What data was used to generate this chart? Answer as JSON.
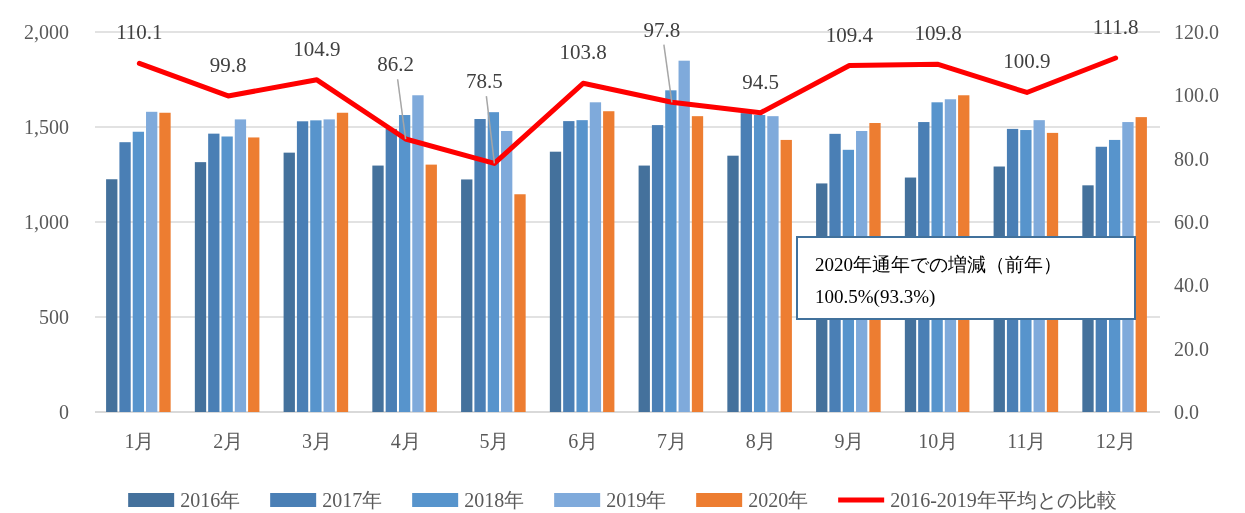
{
  "chart_data": {
    "type": "bar",
    "categories": [
      "1月",
      "2月",
      "3月",
      "4月",
      "5月",
      "6月",
      "7月",
      "8月",
      "9月",
      "10月",
      "11月",
      "12月"
    ],
    "series": [
      {
        "name": "2016年",
        "color": "#44719c",
        "values": [
          1225,
          1315,
          1365,
          1297,
          1224,
          1370,
          1297,
          1349,
          1203,
          1234,
          1292,
          1193
        ]
      },
      {
        "name": "2017年",
        "color": "#4a7fb5",
        "values": [
          1420,
          1465,
          1530,
          1490,
          1542,
          1531,
          1510,
          1573,
          1464,
          1526,
          1490,
          1396
        ]
      },
      {
        "name": "2018年",
        "color": "#5794cc",
        "values": [
          1475,
          1450,
          1535,
          1563,
          1578,
          1536,
          1693,
          1563,
          1380,
          1630,
          1484,
          1432
        ]
      },
      {
        "name": "2019年",
        "color": "#7faadb",
        "values": [
          1580,
          1540,
          1540,
          1667,
          1479,
          1630,
          1849,
          1557,
          1479,
          1646,
          1536,
          1526
        ]
      },
      {
        "name": "2020年",
        "color": "#ed7d31",
        "values": [
          1575,
          1445,
          1575,
          1302,
          1146,
          1583,
          1557,
          1432,
          1521,
          1667,
          1469,
          1552
        ]
      },
      {
        "name": "2016-2019年平均との比較",
        "color": "#ff0000",
        "type": "line",
        "axis": "y2",
        "values": [
          110.1,
          99.8,
          104.9,
          86.2,
          78.5,
          103.8,
          97.8,
          94.5,
          109.4,
          109.8,
          100.9,
          111.8
        ],
        "value_labels": [
          "110.1",
          "99.8",
          "104.9",
          "86.2",
          "78.5",
          "103.8",
          "97.8",
          "94.5",
          "109.4",
          "109.8",
          "100.9",
          "111.8"
        ]
      }
    ],
    "ylim": [
      0,
      2000
    ],
    "yticks": [
      {
        "value": 0,
        "label": "0"
      },
      {
        "value": 500,
        "label": "500"
      },
      {
        "value": 1000,
        "label": "1,000"
      },
      {
        "value": 1500,
        "label": "1,500"
      },
      {
        "value": 2000,
        "label": "2,000"
      }
    ],
    "y2lim": [
      0,
      120
    ],
    "y2ticks": [
      {
        "value": 0,
        "label": "0.0"
      },
      {
        "value": 20,
        "label": "20.0"
      },
      {
        "value": 40,
        "label": "40.0"
      },
      {
        "value": 60,
        "label": "60.0"
      },
      {
        "value": 80,
        "label": "80.0"
      },
      {
        "value": 100,
        "label": "100.0"
      },
      {
        "value": 120,
        "label": "120.0"
      }
    ],
    "grid": "y",
    "legend": "bottom",
    "annotations": [
      "2020年通年での増減（前年）\n100.5%(93.3%)"
    ]
  }
}
